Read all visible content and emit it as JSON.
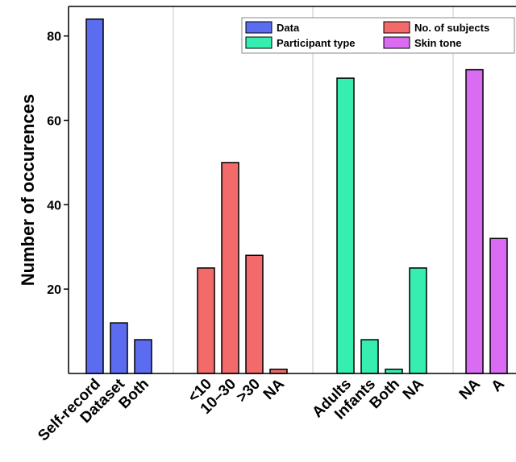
{
  "chart_data": {
    "type": "bar",
    "ylabel": "Number of occurences",
    "xlabel": "",
    "ylim": [
      0,
      87
    ],
    "yticks": [
      20,
      40,
      60,
      80
    ],
    "grid": false,
    "legend_placement": "top-right",
    "groups": [
      {
        "name": "Data",
        "color": "#5b6cf0",
        "categories": [
          "Self-record",
          "Dataset",
          "Both"
        ],
        "values": [
          84,
          12,
          8
        ]
      },
      {
        "name": "No. of subjects",
        "color": "#f26a6a",
        "categories": [
          "<10",
          "10–30",
          ">30",
          "NA"
        ],
        "values": [
          25,
          50,
          28,
          1
        ]
      },
      {
        "name": "Participant type",
        "color": "#36eeb0",
        "categories": [
          "Adults",
          "Infants",
          "Both",
          "NA"
        ],
        "values": [
          70,
          8,
          1,
          25
        ]
      },
      {
        "name": "Skin tone",
        "color": "#d96cf2",
        "categories": [
          "NA",
          "A"
        ],
        "values": [
          72,
          32
        ]
      }
    ]
  }
}
